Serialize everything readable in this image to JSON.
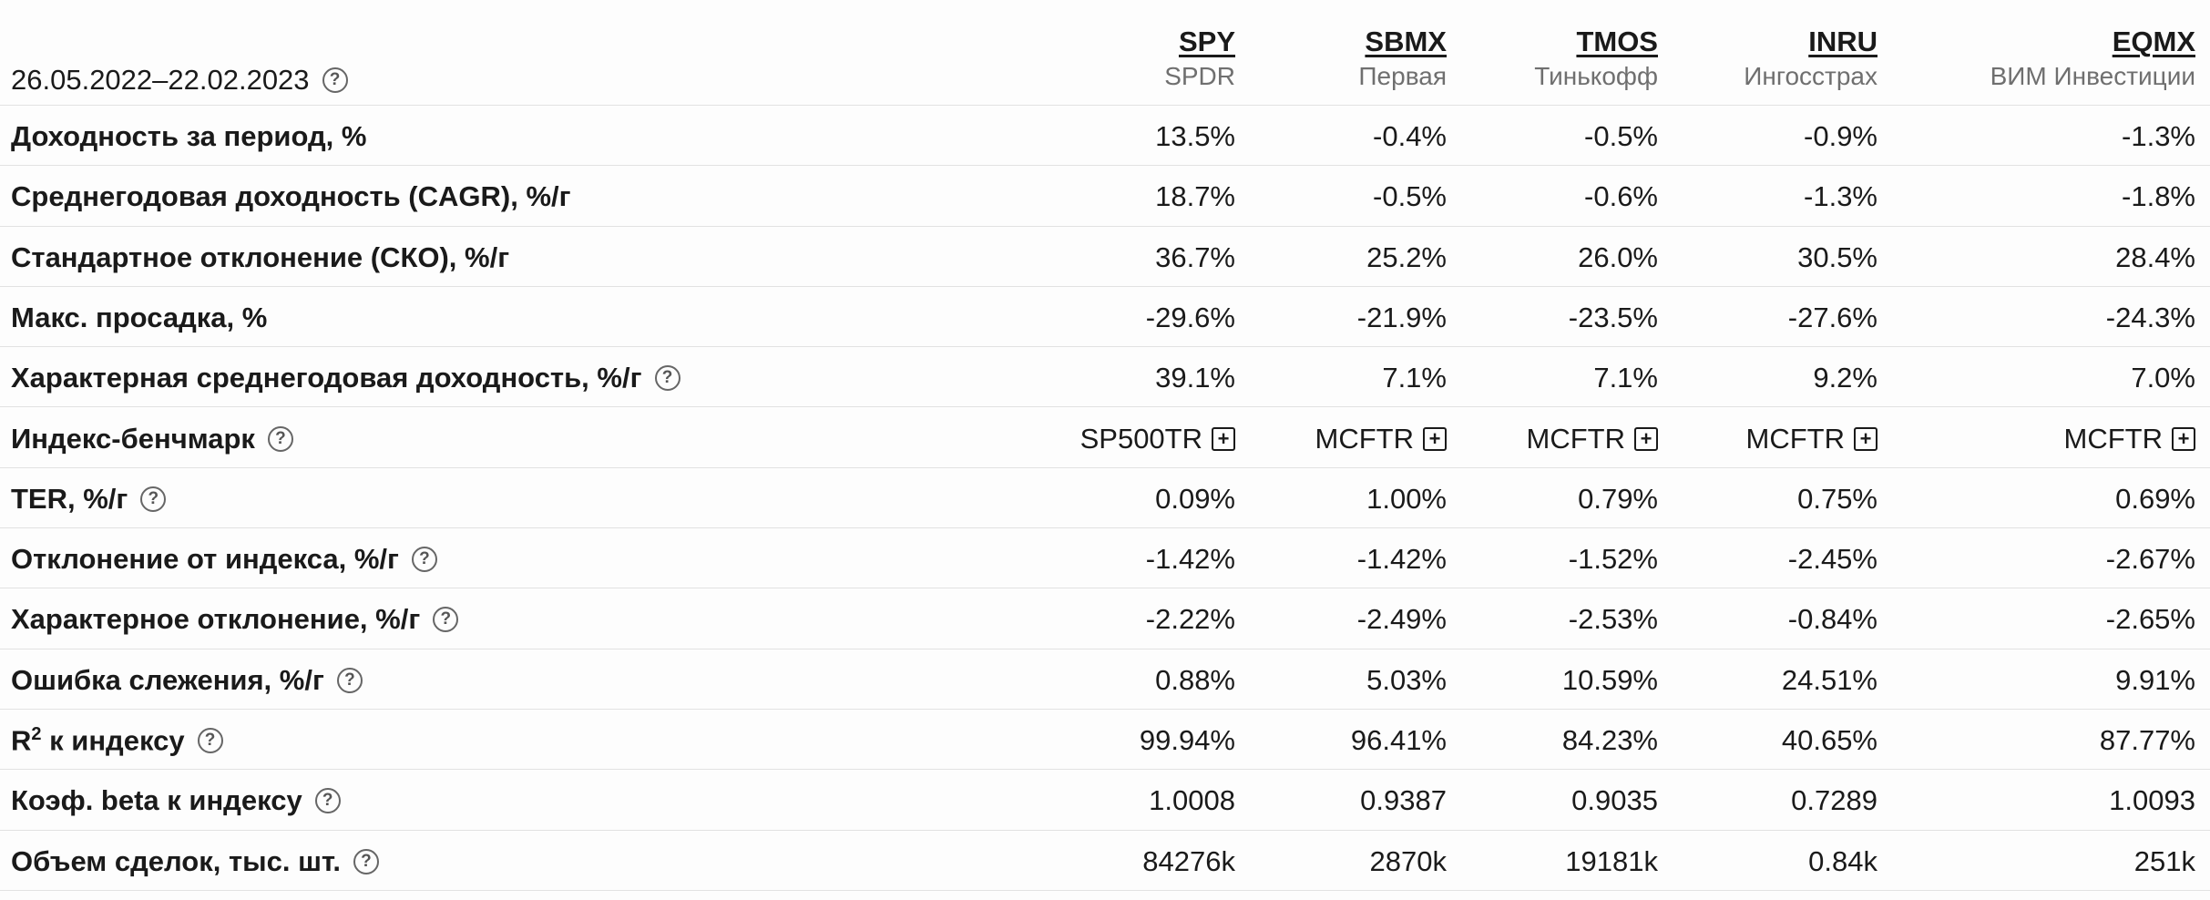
{
  "header": {
    "period": "26.05.2022–22.02.2023",
    "funds": [
      {
        "ticker": "SPY",
        "issuer": "SPDR"
      },
      {
        "ticker": "SBMX",
        "issuer": "Первая"
      },
      {
        "ticker": "TMOS",
        "issuer": "Тинькофф"
      },
      {
        "ticker": "INRU",
        "issuer": "Ингосстрах"
      },
      {
        "ticker": "EQMX",
        "issuer": "ВИМ Инвестиции"
      }
    ]
  },
  "icons": {
    "help": "question-circle-icon",
    "expand": "plus-square-icon"
  },
  "rows": [
    {
      "label": "Доходность за период, %",
      "help": false,
      "values": [
        "13.5%",
        "-0.4%",
        "-0.5%",
        "-0.9%",
        "-1.3%"
      ]
    },
    {
      "label": "Среднегодовая доходность (CAGR), %/г",
      "help": false,
      "values": [
        "18.7%",
        "-0.5%",
        "-0.6%",
        "-1.3%",
        "-1.8%"
      ]
    },
    {
      "label": "Стандартное отклонение (СКО), %/г",
      "help": false,
      "values": [
        "36.7%",
        "25.2%",
        "26.0%",
        "30.5%",
        "28.4%"
      ]
    },
    {
      "label": "Макс. просадка, %",
      "help": false,
      "values": [
        "-29.6%",
        "-21.9%",
        "-23.5%",
        "-27.6%",
        "-24.3%"
      ]
    },
    {
      "label": "Характерная среднегодовая доходность, %/г",
      "help": true,
      "values": [
        "39.1%",
        "7.1%",
        "7.1%",
        "9.2%",
        "7.0%"
      ]
    },
    {
      "label": "Индекс-бенчмарк",
      "help": true,
      "bench": true,
      "values": [
        "SP500TR",
        "MCFTR",
        "MCFTR",
        "MCFTR",
        "MCFTR"
      ]
    },
    {
      "label": "TER, %/г",
      "help": true,
      "values": [
        "0.09%",
        "1.00%",
        "0.79%",
        "0.75%",
        "0.69%"
      ]
    },
    {
      "label": "Отклонение от индекса, %/г",
      "help": true,
      "values": [
        "-1.42%",
        "-1.42%",
        "-1.52%",
        "-2.45%",
        "-2.67%"
      ]
    },
    {
      "label": "Характерное отклонение, %/г",
      "help": true,
      "values": [
        "-2.22%",
        "-2.49%",
        "-2.53%",
        "-0.84%",
        "-2.65%"
      ]
    },
    {
      "label": "Ошибка слежения, %/г",
      "help": true,
      "values": [
        "0.88%",
        "5.03%",
        "10.59%",
        "24.51%",
        "9.91%"
      ]
    },
    {
      "label": "к индексу",
      "labelPrefix": "R",
      "labelSup": "2",
      "help": true,
      "values": [
        "99.94%",
        "96.41%",
        "84.23%",
        "40.65%",
        "87.77%"
      ]
    },
    {
      "label": "Коэф. beta к индексу",
      "help": true,
      "values": [
        "1.0008",
        "0.9387",
        "0.9035",
        "0.7289",
        "1.0093"
      ]
    },
    {
      "label": "Объем сделок, тыс. шт.",
      "help": true,
      "values": [
        "84276k",
        "2870k",
        "19181k",
        "0.84k",
        "251k"
      ]
    }
  ]
}
